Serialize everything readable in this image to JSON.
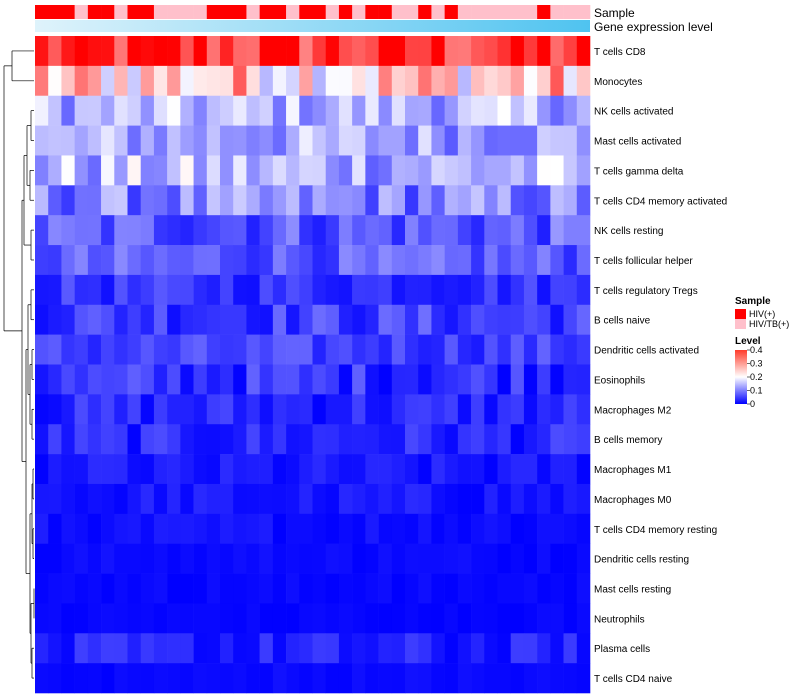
{
  "chart_data": {
    "type": "heatmap",
    "annotation_rows": [
      {
        "name": "Sample",
        "kind": "categorical"
      },
      {
        "name": "Gene expression level",
        "kind": "continuous"
      }
    ],
    "sample_groups": [
      {
        "name": "HIV(+)",
        "color": "#ff0000"
      },
      {
        "name": "HIV/TB(+)",
        "color": "#ffc0cb"
      }
    ],
    "sample_annotation": [
      0,
      0,
      0,
      1,
      0,
      0,
      1,
      0,
      0,
      1,
      1,
      1,
      1,
      0,
      0,
      0,
      1,
      0,
      0,
      1,
      0,
      0,
      1,
      0,
      1,
      0,
      0,
      1,
      1,
      0,
      1,
      0,
      1,
      1,
      1,
      1,
      1,
      1,
      0,
      1,
      1,
      1
    ],
    "row_labels": [
      "T cells CD8",
      "Monocytes",
      "NK cells activated",
      "Mast cells activated",
      "T cells gamma delta",
      "T cells CD4 memory activated",
      "NK cells resting",
      "T cells follicular helper",
      "T cells regulatory  Tregs",
      "B cells naive",
      "Dendritic cells activated",
      "Eosinophils",
      "Macrophages M2",
      "B cells memory",
      "Macrophages M1",
      "Macrophages M0",
      "T cells CD4 memory resting",
      "Dendritic cells resting",
      "Mast cells resting",
      "Neutrophils",
      "Plasma cells",
      "T cells CD4 naive"
    ],
    "row_base_levels": [
      0.36,
      0.24,
      0.14,
      0.13,
      0.14,
      0.1,
      0.07,
      0.07,
      0.04,
      0.05,
      0.05,
      0.04,
      0.03,
      0.03,
      0.015,
      0.015,
      0.01,
      0.006,
      0.004,
      0.003,
      0.02,
      0.005
    ],
    "row_spread": [
      0.08,
      0.1,
      0.06,
      0.06,
      0.07,
      0.06,
      0.05,
      0.04,
      0.03,
      0.04,
      0.03,
      0.04,
      0.03,
      0.03,
      0.02,
      0.02,
      0.015,
      0.01,
      0.008,
      0.006,
      0.03,
      0.01
    ],
    "n_columns": 42,
    "legend": {
      "sample_title": "Sample",
      "level_title": "Level",
      "level_ticks": [
        "0.4",
        "0.3",
        "0.2",
        "0.1",
        "0"
      ],
      "level_range": [
        0,
        0.4
      ],
      "colors": {
        "low": "#0000ff",
        "mid": "#ffffff",
        "high": "#ff0000",
        "mid_value": 0.2
      }
    },
    "dendrogram": "rows"
  }
}
